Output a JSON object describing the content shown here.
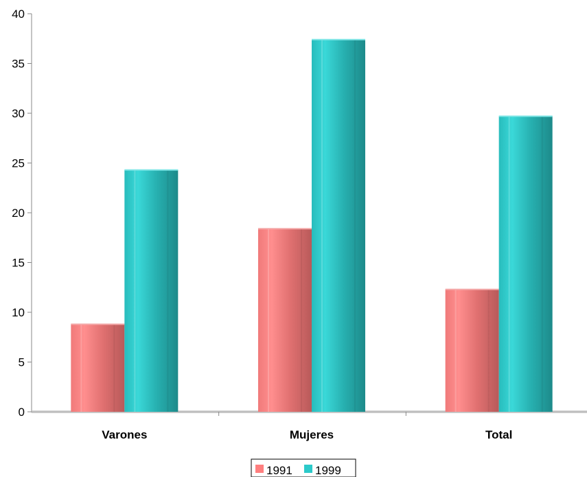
{
  "chart_data": {
    "type": "bar",
    "categories": [
      "Varones",
      "Mujeres",
      "Total"
    ],
    "series": [
      {
        "name": "1991",
        "values": [
          8.8,
          18.4,
          12.3
        ]
      },
      {
        "name": "1999",
        "values": [
          24.3,
          37.4,
          29.7
        ]
      }
    ],
    "ylim": [
      0,
      40
    ],
    "yticks": [
      "0",
      "5",
      "10",
      "15",
      "20",
      "25",
      "30",
      "35",
      "40"
    ],
    "legend": "bottom",
    "grid": false,
    "colors": {
      "s1991": [
        "#f08080",
        "#ff8c8c",
        "#b85a5a"
      ],
      "s1999": [
        "#2cc6c6",
        "#3ad6d6",
        "#1f8f8f"
      ]
    }
  }
}
